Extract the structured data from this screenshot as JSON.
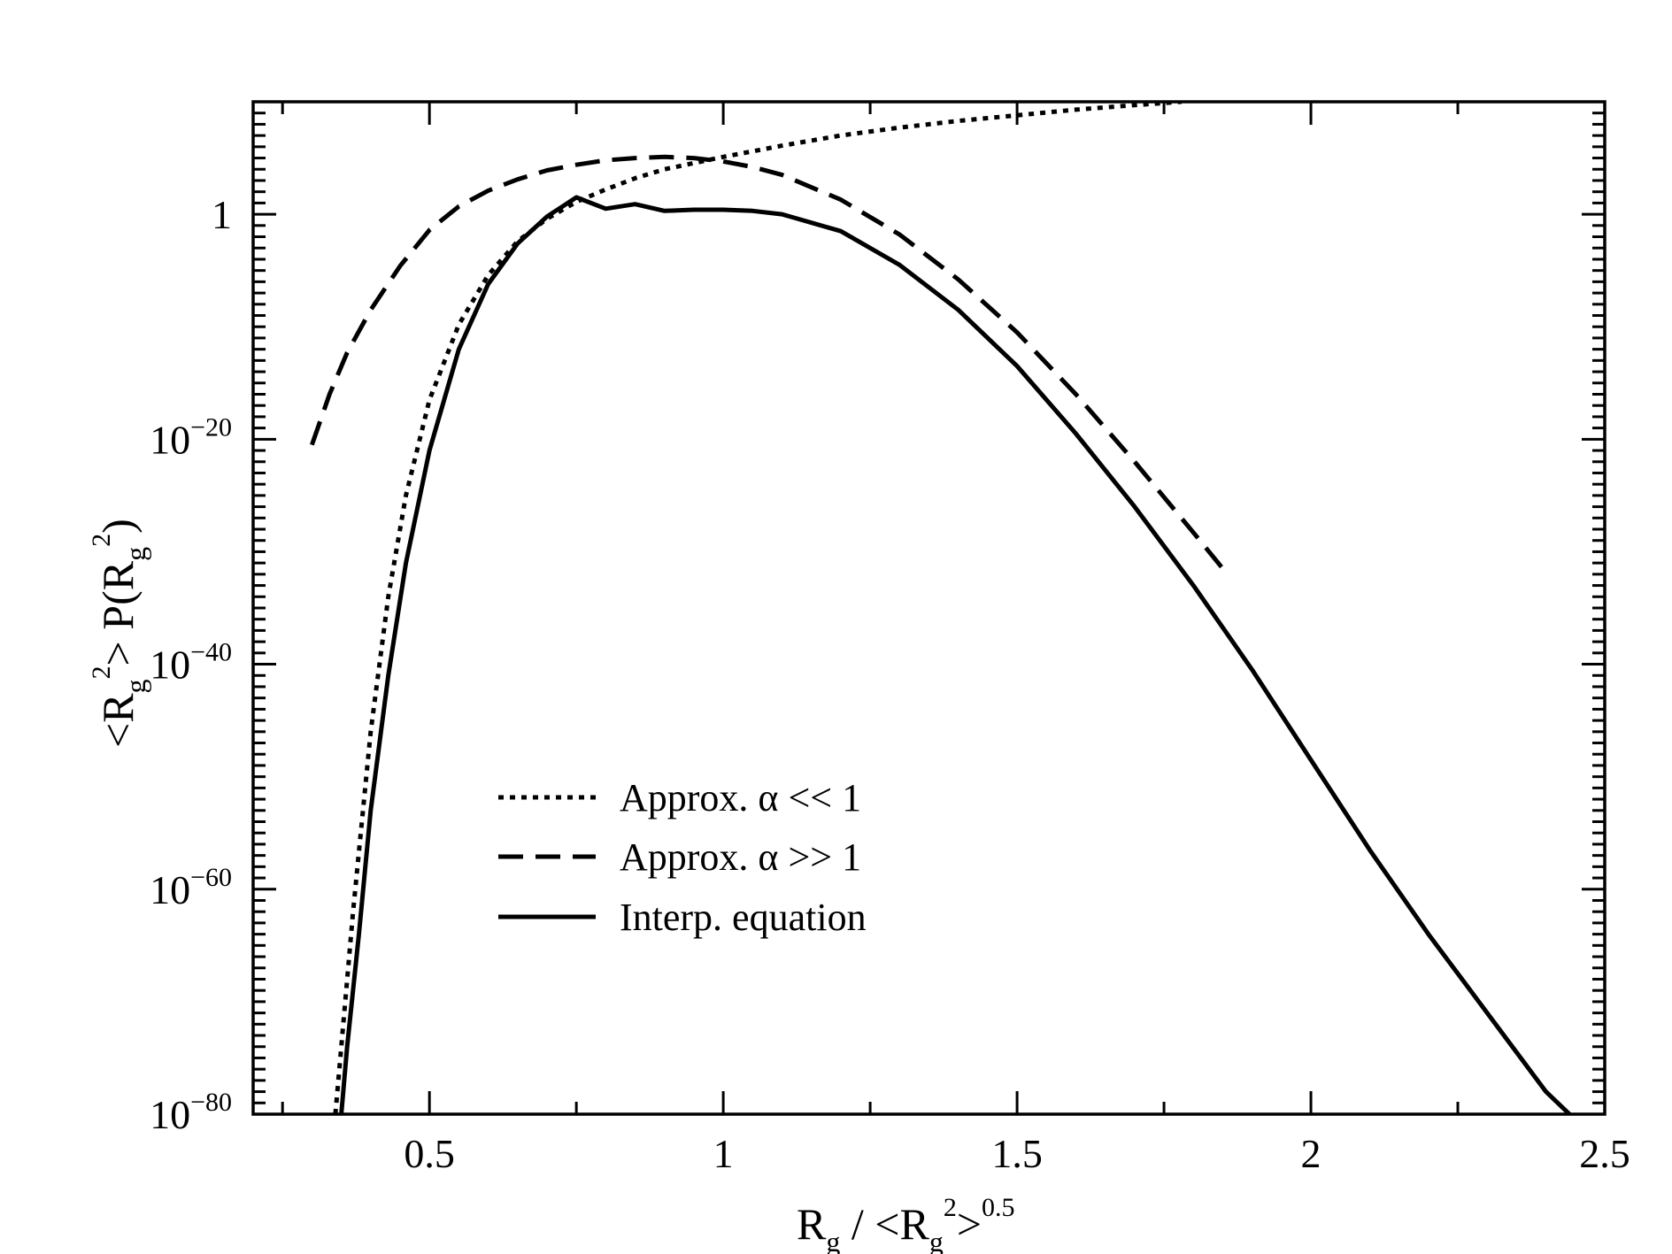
{
  "chart_data": {
    "type": "line",
    "title": "",
    "xlabel": {
      "base": "R",
      "sub": "g",
      "mid": " / <R",
      "sub2": "g",
      "sup": "2",
      "tail": ">",
      "exp": "0.5"
    },
    "ylabel": {
      "a": "<R",
      "sub": "g",
      "sup": "2",
      "b": "> P(R",
      "sub2": "g",
      "sup2": "2",
      "c": ")"
    },
    "x_scale": "linear",
    "y_scale": "log",
    "xlim": [
      0.2,
      2.5
    ],
    "ylim_log10": [
      -80,
      10
    ],
    "x_ticks": [
      {
        "value": 0.5,
        "label": "0.5"
      },
      {
        "value": 1,
        "label": "1"
      },
      {
        "value": 1.5,
        "label": "1.5"
      },
      {
        "value": 2,
        "label": "2"
      },
      {
        "value": 2.5,
        "label": "2.5"
      }
    ],
    "y_ticks": [
      {
        "log10": 0,
        "base": "1",
        "exp": ""
      },
      {
        "log10": -20,
        "base": "10",
        "exp": "−20"
      },
      {
        "log10": -40,
        "base": "10",
        "exp": "−40"
      },
      {
        "log10": -60,
        "base": "10",
        "exp": "−60"
      },
      {
        "log10": -80,
        "base": "10",
        "exp": "−80"
      }
    ],
    "grid": false,
    "legend_position": "lower-left",
    "series": [
      {
        "name": "Approx. α << 1",
        "style": "dotted",
        "color": "#000000",
        "x": [
          0.34,
          0.35,
          0.37,
          0.4,
          0.43,
          0.46,
          0.5,
          0.55,
          0.6,
          0.65,
          0.7,
          0.75,
          0.8,
          0.85,
          0.9,
          1.0,
          1.1,
          1.2,
          1.3,
          1.4,
          1.5,
          1.6,
          1.7,
          1.78
        ],
        "log10_y": [
          -80,
          -74,
          -62,
          -46,
          -34,
          -25,
          -16.5,
          -9.8,
          -5.4,
          -2.4,
          -0.4,
          1.1,
          2.2,
          3.2,
          4.0,
          5.1,
          6.1,
          7.0,
          7.7,
          8.3,
          8.8,
          9.3,
          9.7,
          10
        ]
      },
      {
        "name": "Approx. α >> 1",
        "style": "dashed",
        "color": "#000000",
        "x": [
          0.3,
          0.33,
          0.36,
          0.4,
          0.45,
          0.5,
          0.55,
          0.6,
          0.65,
          0.7,
          0.75,
          0.8,
          0.85,
          0.9,
          0.95,
          1.0,
          1.05,
          1.1,
          1.2,
          1.3,
          1.4,
          1.5,
          1.6,
          1.7,
          1.8,
          1.85
        ],
        "log10_y": [
          -20.5,
          -16,
          -12.3,
          -8.5,
          -4.6,
          -1.4,
          0.7,
          2.1,
          3.1,
          3.9,
          4.4,
          4.8,
          5.0,
          5.1,
          5.0,
          4.7,
          4.2,
          3.5,
          1.3,
          -1.8,
          -5.8,
          -10.5,
          -16.0,
          -22.0,
          -28.3,
          -31.5
        ]
      },
      {
        "name": "Interp. equation",
        "style": "solid",
        "color": "#000000",
        "x": [
          0.35,
          0.36,
          0.38,
          0.4,
          0.43,
          0.46,
          0.5,
          0.55,
          0.6,
          0.65,
          0.7,
          0.75,
          0.8,
          0.85,
          0.9,
          0.95,
          1.0,
          1.05,
          1.1,
          1.2,
          1.3,
          1.4,
          1.5,
          1.6,
          1.7,
          1.8,
          1.9,
          2.0,
          2.1,
          2.2,
          2.3,
          2.4,
          2.44
        ],
        "log10_y": [
          -80,
          -74,
          -64,
          -53,
          -41,
          -31,
          -21,
          -12,
          -6.2,
          -2.6,
          -0.2,
          1.5,
          0.5,
          0.9,
          0.3,
          0.4,
          0.4,
          0.3,
          0.0,
          -1.5,
          -4.5,
          -8.5,
          -13.5,
          -19.5,
          -26.0,
          -33.0,
          -40.5,
          -48.5,
          -56.5,
          -64.0,
          -71.0,
          -78.0,
          -80
        ]
      }
    ]
  }
}
